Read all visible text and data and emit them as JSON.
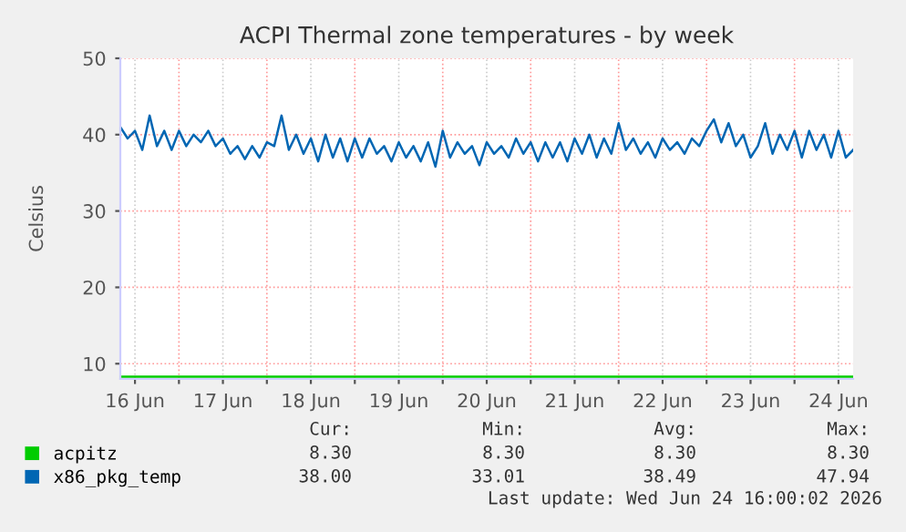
{
  "chart_data": {
    "type": "line",
    "title": "ACPI Thermal zone temperatures - by week",
    "ylabel": "Celsius",
    "xlim": [
      "2026-06-16T08:00",
      "2026-06-24T16:00"
    ],
    "xticks": [
      {
        "value": "2026-06-16T12:00",
        "label": "16 Jun"
      },
      {
        "value": "2026-06-17T00:00",
        "label": null
      },
      {
        "value": "2026-06-17T12:00",
        "label": "17 Jun"
      },
      {
        "value": "2026-06-18T00:00",
        "label": null
      },
      {
        "value": "2026-06-18T12:00",
        "label": "18 Jun"
      },
      {
        "value": "2026-06-19T00:00",
        "label": null
      },
      {
        "value": "2026-06-19T12:00",
        "label": "19 Jun"
      },
      {
        "value": "2026-06-20T00:00",
        "label": null
      },
      {
        "value": "2026-06-20T12:00",
        "label": "20 Jun"
      },
      {
        "value": "2026-06-21T00:00",
        "label": null
      },
      {
        "value": "2026-06-21T12:00",
        "label": "21 Jun"
      },
      {
        "value": "2026-06-22T00:00",
        "label": null
      },
      {
        "value": "2026-06-22T12:00",
        "label": "22 Jun"
      },
      {
        "value": "2026-06-23T00:00",
        "label": null
      },
      {
        "value": "2026-06-23T12:00",
        "label": "23 Jun"
      },
      {
        "value": "2026-06-24T00:00",
        "label": null
      },
      {
        "value": "2026-06-24T12:00",
        "label": "24 Jun"
      }
    ],
    "ylim": [
      8,
      50
    ],
    "yticks": [
      10,
      20,
      30,
      40,
      50
    ],
    "grid": true,
    "legend": "bottom left",
    "series": [
      {
        "name": "acpitz",
        "color": "#00cc00",
        "x": [
          "2026-06-16T08:00",
          "2026-06-24T16:00"
        ],
        "values": [
          8.3,
          8.3
        ]
      },
      {
        "name": "x86_pkg_temp",
        "color": "#0066b3",
        "x": [
          "2026-06-16T08:00",
          "2026-06-16T10:00",
          "2026-06-16T12:00",
          "2026-06-16T14:00",
          "2026-06-16T16:00",
          "2026-06-16T18:00",
          "2026-06-16T20:00",
          "2026-06-16T22:00",
          "2026-06-17T00:00",
          "2026-06-17T02:00",
          "2026-06-17T04:00",
          "2026-06-17T06:00",
          "2026-06-17T08:00",
          "2026-06-17T10:00",
          "2026-06-17T12:00",
          "2026-06-17T14:00",
          "2026-06-17T16:00",
          "2026-06-17T18:00",
          "2026-06-17T20:00",
          "2026-06-17T22:00",
          "2026-06-18T00:00",
          "2026-06-18T02:00",
          "2026-06-18T04:00",
          "2026-06-18T06:00",
          "2026-06-18T08:00",
          "2026-06-18T10:00",
          "2026-06-18T12:00",
          "2026-06-18T14:00",
          "2026-06-18T16:00",
          "2026-06-18T18:00",
          "2026-06-18T20:00",
          "2026-06-18T22:00",
          "2026-06-19T00:00",
          "2026-06-19T02:00",
          "2026-06-19T04:00",
          "2026-06-19T06:00",
          "2026-06-19T08:00",
          "2026-06-19T10:00",
          "2026-06-19T12:00",
          "2026-06-19T14:00",
          "2026-06-19T16:00",
          "2026-06-19T18:00",
          "2026-06-19T20:00",
          "2026-06-19T22:00",
          "2026-06-20T00:00",
          "2026-06-20T02:00",
          "2026-06-20T04:00",
          "2026-06-20T06:00",
          "2026-06-20T08:00",
          "2026-06-20T10:00",
          "2026-06-20T12:00",
          "2026-06-20T14:00",
          "2026-06-20T16:00",
          "2026-06-20T18:00",
          "2026-06-20T20:00",
          "2026-06-20T22:00",
          "2026-06-21T00:00",
          "2026-06-21T02:00",
          "2026-06-21T04:00",
          "2026-06-21T06:00",
          "2026-06-21T08:00",
          "2026-06-21T10:00",
          "2026-06-21T12:00",
          "2026-06-21T14:00",
          "2026-06-21T16:00",
          "2026-06-21T18:00",
          "2026-06-21T20:00",
          "2026-06-21T22:00",
          "2026-06-22T00:00",
          "2026-06-22T02:00",
          "2026-06-22T04:00",
          "2026-06-22T06:00",
          "2026-06-22T08:00",
          "2026-06-22T10:00",
          "2026-06-22T12:00",
          "2026-06-22T14:00",
          "2026-06-22T16:00",
          "2026-06-22T18:00",
          "2026-06-22T20:00",
          "2026-06-22T22:00",
          "2026-06-23T00:00",
          "2026-06-23T02:00",
          "2026-06-23T04:00",
          "2026-06-23T06:00",
          "2026-06-23T08:00",
          "2026-06-23T10:00",
          "2026-06-23T12:00",
          "2026-06-23T14:00",
          "2026-06-23T16:00",
          "2026-06-23T18:00",
          "2026-06-23T20:00",
          "2026-06-23T22:00",
          "2026-06-24T00:00",
          "2026-06-24T02:00",
          "2026-06-24T04:00",
          "2026-06-24T06:00",
          "2026-06-24T08:00",
          "2026-06-24T10:00",
          "2026-06-24T12:00",
          "2026-06-24T14:00",
          "2026-06-24T16:00"
        ],
        "values": [
          41,
          39.5,
          40.5,
          38,
          42.5,
          38.5,
          40.5,
          38,
          40.5,
          38.5,
          40,
          39,
          40.5,
          38.5,
          39.5,
          37.5,
          38.5,
          36.8,
          38.5,
          37,
          39,
          38.5,
          42.5,
          38,
          40,
          37.5,
          39.5,
          36.5,
          40,
          37,
          39.5,
          36.5,
          39.5,
          37,
          39.5,
          37.5,
          38.5,
          36.5,
          39,
          37,
          38.5,
          36.5,
          39,
          35.8,
          40.5,
          37,
          39,
          37.5,
          38.5,
          36,
          39,
          37.5,
          38.5,
          37,
          39.5,
          37.5,
          39,
          36.5,
          39,
          37,
          39,
          36.5,
          39.5,
          37.5,
          40,
          37,
          39.5,
          37.5,
          41.5,
          38,
          39.5,
          37.5,
          39,
          37,
          39.5,
          38,
          39,
          37.5,
          39.5,
          38.5,
          40.5,
          42,
          39,
          41.5,
          38.5,
          40,
          37,
          38.5,
          41.5,
          37.5,
          40,
          38,
          40.5,
          37,
          40.5,
          38,
          40,
          37,
          40.5,
          37,
          38
        ]
      }
    ],
    "annotations": [
      "Cur:",
      "Min:",
      "Avg:",
      "Max:",
      "8.30",
      "8.30",
      "8.30",
      "8.30",
      "38.00",
      "33.01",
      "38.49",
      "47.94",
      "Last update: Wed Jun 24 16:00:02 2026"
    ]
  }
}
